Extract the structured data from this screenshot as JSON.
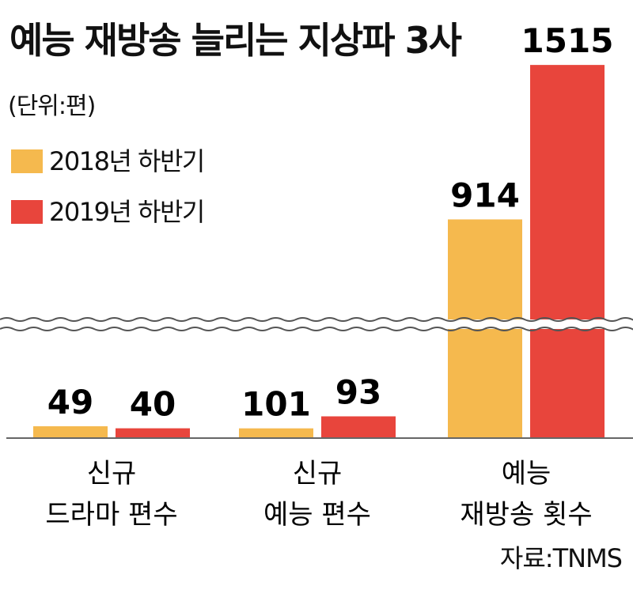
{
  "chart_data": {
    "type": "bar",
    "title": "예능 재방송 늘리는 지상파 3사",
    "subtitle": "(단위:편)",
    "categories": [
      [
        "신규",
        "드라마 편수"
      ],
      [
        "신규",
        "예능 편수"
      ],
      [
        "예능",
        "재방송 횟수"
      ]
    ],
    "series": [
      {
        "name": "2018년 하반기",
        "color": "#F5B94E",
        "values": [
          49,
          101,
          914
        ]
      },
      {
        "name": "2019년 하반기",
        "color": "#E8453C",
        "values": [
          40,
          93,
          1515
        ]
      }
    ],
    "axis_break": true,
    "grid": false,
    "legend_position": "top-left",
    "source": "자료:TNMS"
  }
}
